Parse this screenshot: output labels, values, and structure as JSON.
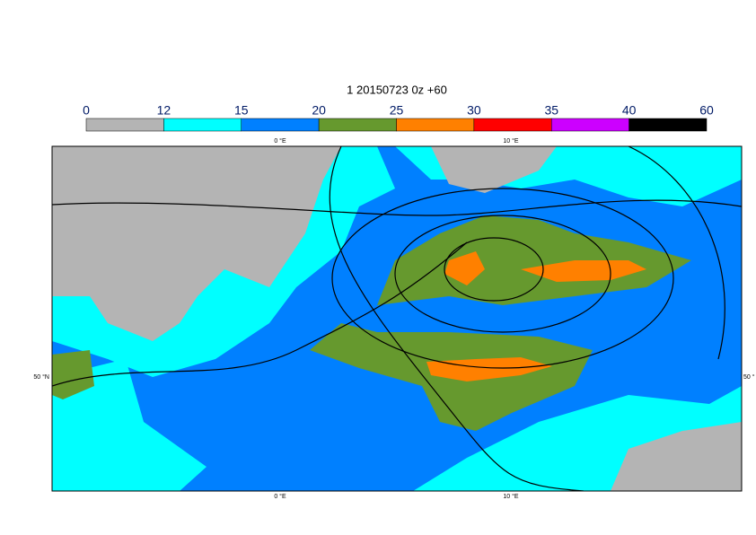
{
  "title": "1 20150723 0z +60",
  "colorbar": {
    "bounds": [
      0,
      12,
      15,
      20,
      25,
      30,
      35,
      40,
      60
    ],
    "colors": [
      "#b4b4b4",
      "#00ffff",
      "#0080ff",
      "#66992e",
      "#ff8000",
      "#ff0000",
      "#cc00ff",
      "#000000"
    ]
  },
  "map": {
    "top_labels": [
      "0 °E",
      "10 °E"
    ],
    "bottom_labels": [
      "0 °E",
      "10 °E"
    ],
    "left_label": "50 °N",
    "right_label": "50 °"
  }
}
